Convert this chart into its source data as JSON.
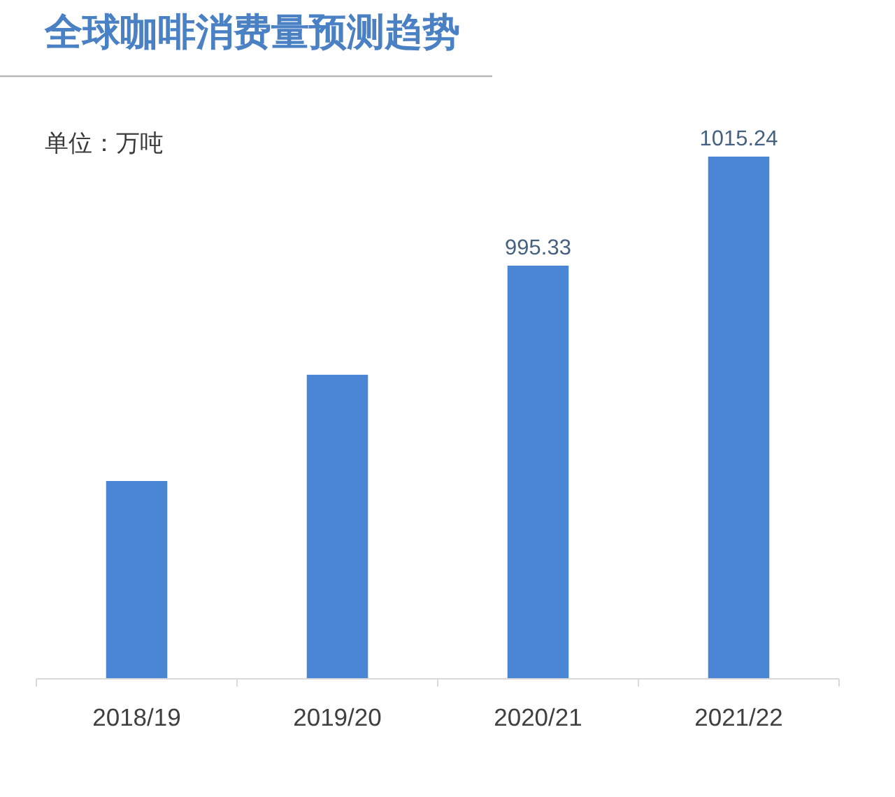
{
  "chart_data": {
    "type": "bar",
    "title": "全球咖啡消费量预测趋势",
    "annotations": [
      "单位：万吨"
    ],
    "categories": [
      "2018/19",
      "2019/20",
      "2020/21",
      "2021/22"
    ],
    "values": [
      956.0,
      975.4,
      995.33,
      1015.24
    ],
    "value_labels": [
      null,
      null,
      "995.33",
      "1015.24"
    ],
    "color": "#4a86d4",
    "ylim": [
      920,
      1015.24
    ],
    "tick_labels": "x"
  }
}
